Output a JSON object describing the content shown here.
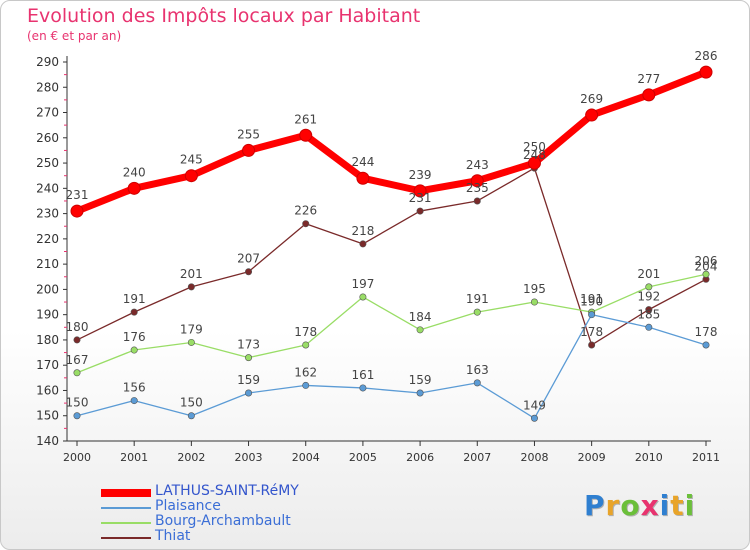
{
  "title": "Evolution des Impôts locaux par Habitant",
  "subtitle": "(en € et par an)",
  "logo": {
    "letters": [
      "P",
      "r",
      "o",
      "x",
      "i",
      "t",
      "i"
    ],
    "colors": [
      "#2f7fd0",
      "#e8a42a",
      "#6bbf3a",
      "#e8336f",
      "#2f7fd0",
      "#e8a42a",
      "#6bbf3a"
    ]
  },
  "chart_data": {
    "type": "line",
    "title": "Evolution des Impôts locaux par Habitant",
    "subtitle": "(en € et par an)",
    "categories": [
      "2000",
      "2001",
      "2002",
      "2003",
      "2004",
      "2005",
      "2006",
      "2007",
      "2008",
      "2009",
      "2010",
      "2011"
    ],
    "ylim": [
      140,
      290
    ],
    "yticks": [
      140,
      150,
      160,
      170,
      180,
      190,
      200,
      210,
      220,
      230,
      240,
      250,
      260,
      270,
      280,
      290
    ],
    "grid": false,
    "legend_position": "bottom-left",
    "series": [
      {
        "name": "LATHUS-SAINT-RéMY",
        "color": "#ff0000",
        "values": [
          231,
          240,
          245,
          255,
          261,
          244,
          239,
          243,
          250,
          269,
          277,
          286
        ],
        "labels": [
          "231",
          "240",
          "245",
          "255",
          "261",
          "244",
          "239",
          "243",
          "250",
          "269",
          "277",
          "286"
        ]
      },
      {
        "name": "Plaisance",
        "color": "#5b9bd5",
        "values": [
          150,
          156,
          150,
          159,
          162,
          161,
          159,
          163,
          149,
          190,
          185,
          178
        ],
        "labels": [
          "150",
          "156",
          "150",
          "159",
          "162",
          "161",
          "159",
          "163",
          "149",
          "190",
          "185",
          "178"
        ]
      },
      {
        "name": "Bourg-Archambault",
        "color": "#99dd66",
        "values": [
          167,
          176,
          179,
          173,
          178,
          197,
          184,
          191,
          195,
          191,
          201,
          206
        ],
        "labels": [
          "167",
          "176",
          "179",
          "173",
          "178",
          "197",
          "184",
          "191",
          "195",
          "191",
          "201",
          "206"
        ]
      },
      {
        "name": "Thiat",
        "color": "#7a2a2a",
        "values": [
          180,
          191,
          201,
          207,
          226,
          218,
          231,
          235,
          248,
          178,
          192,
          204
        ],
        "labels": [
          "180",
          "191",
          "201",
          "207",
          "226",
          "218",
          "231",
          "235",
          "248",
          "178",
          "192",
          "204"
        ]
      }
    ]
  }
}
